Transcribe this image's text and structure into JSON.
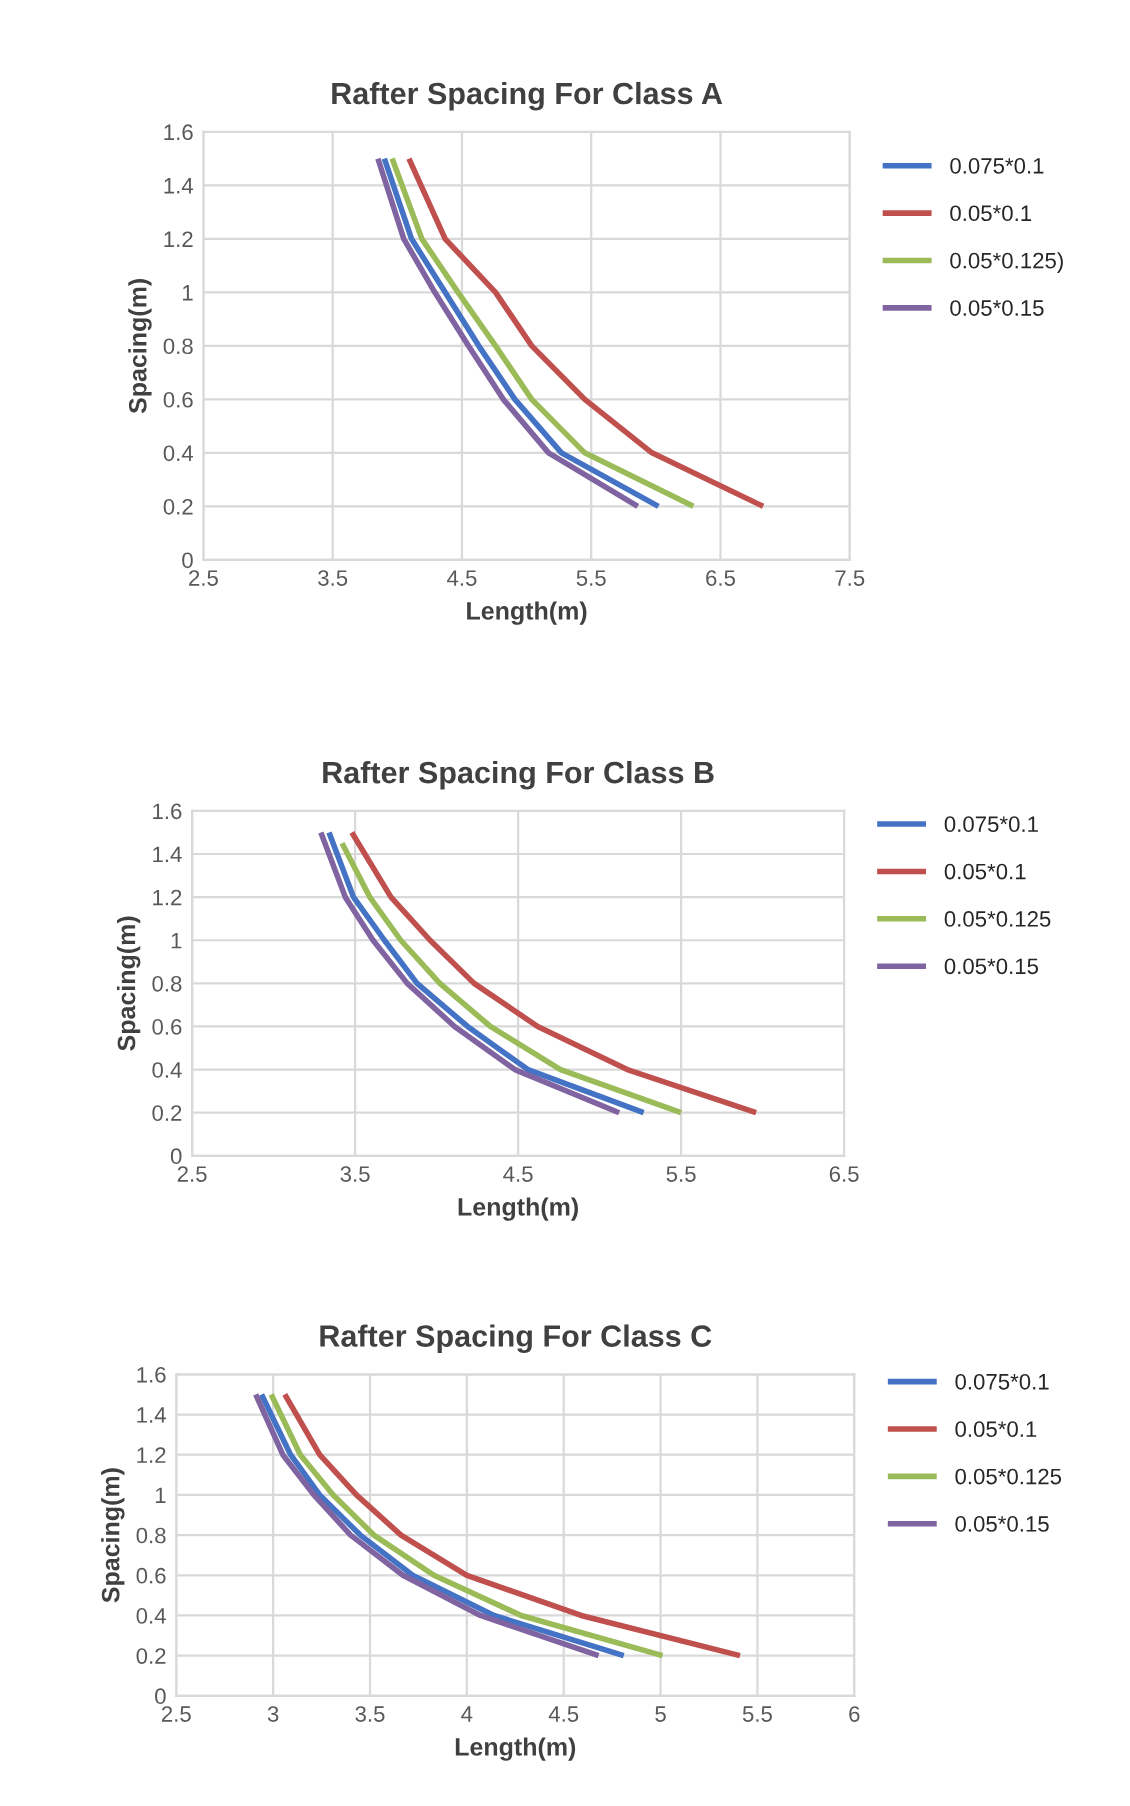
{
  "chart_data": [
    {
      "type": "line",
      "title": "Rafter Spacing For Class A",
      "xlabel": "Length(m)",
      "ylabel": "Spacing(m)",
      "xlim": [
        2.5,
        7.5
      ],
      "xticks": [
        2.5,
        3.5,
        4.5,
        5.5,
        6.5,
        7.5
      ],
      "ylim": [
        0,
        1.6
      ],
      "yticks": [
        0,
        0.2,
        0.4,
        0.6,
        0.8,
        1,
        1.2,
        1.4,
        1.6
      ],
      "grid": true,
      "legend": "right",
      "marker": "none",
      "line_style": "solid",
      "series": [
        {
          "name": "0.075*0.1",
          "color": "#4472c4",
          "x": [
            3.9,
            4.11,
            4.37,
            4.63,
            4.91,
            5.27,
            6.02
          ],
          "values": [
            1.5,
            1.2,
            1.0,
            0.8,
            0.6,
            0.4,
            0.2
          ]
        },
        {
          "name": "0.05*0.1",
          "color": "#c0504d",
          "x": [
            4.09,
            4.37,
            4.76,
            5.04,
            5.45,
            5.97,
            6.83
          ],
          "values": [
            1.5,
            1.2,
            1.0,
            0.8,
            0.6,
            0.4,
            0.2
          ]
        },
        {
          "name": "0.05*0.125)",
          "color": "#9bbb59",
          "x": [
            3.96,
            4.19,
            4.47,
            4.76,
            5.04,
            5.45,
            6.29
          ],
          "values": [
            1.5,
            1.2,
            1.0,
            0.8,
            0.6,
            0.4,
            0.2
          ]
        },
        {
          "name": "0.05*0.15",
          "color": "#8064a2",
          "x": [
            3.85,
            4.05,
            4.29,
            4.55,
            4.82,
            5.17,
            5.86
          ],
          "values": [
            1.5,
            1.2,
            1.0,
            0.8,
            0.6,
            0.4,
            0.2
          ]
        }
      ]
    },
    {
      "type": "line",
      "title": "Rafter Spacing For Class B",
      "xlabel": "Length(m)",
      "ylabel": "Spacing(m)",
      "xlim": [
        2.5,
        6.5
      ],
      "xticks": [
        2.5,
        3.5,
        4.5,
        5.5,
        6.5
      ],
      "ylim": [
        0,
        1.6
      ],
      "yticks": [
        0,
        0.2,
        0.4,
        0.6,
        0.8,
        1,
        1.2,
        1.4,
        1.6
      ],
      "grid": true,
      "legend": "right",
      "marker": "none",
      "line_style": "solid",
      "series": [
        {
          "name": "0.075*0.1",
          "color": "#4472c4",
          "x": [
            3.34,
            3.49,
            3.68,
            3.88,
            4.19,
            4.56,
            5.27
          ],
          "values": [
            1.5,
            1.2,
            1.0,
            0.8,
            0.6,
            0.4,
            0.2
          ]
        },
        {
          "name": "0.05*0.1",
          "color": "#c0504d",
          "x": [
            3.48,
            3.72,
            3.96,
            4.23,
            4.62,
            5.17,
            5.96
          ],
          "values": [
            1.5,
            1.2,
            1.0,
            0.8,
            0.6,
            0.4,
            0.2
          ]
        },
        {
          "name": "0.05*0.125",
          "color": "#9bbb59",
          "x": [
            3.42,
            3.59,
            3.78,
            4.02,
            4.33,
            4.76,
            5.5
          ],
          "values": [
            1.45,
            1.2,
            1.0,
            0.8,
            0.6,
            0.4,
            0.2
          ]
        },
        {
          "name": "0.05*0.15",
          "color": "#8064a2",
          "x": [
            3.29,
            3.44,
            3.61,
            3.82,
            4.11,
            4.48,
            5.12
          ],
          "values": [
            1.5,
            1.2,
            1.0,
            0.8,
            0.6,
            0.4,
            0.2
          ]
        }
      ]
    },
    {
      "type": "line",
      "title": "Rafter Spacing For Class C",
      "xlabel": "Length(m)",
      "ylabel": "Spacing(m)",
      "xlim": [
        2.5,
        6
      ],
      "xticks": [
        2.5,
        3,
        3.5,
        4,
        4.5,
        5,
        5.5,
        6
      ],
      "ylim": [
        0,
        1.6
      ],
      "yticks": [
        0,
        0.2,
        0.4,
        0.6,
        0.8,
        1,
        1.2,
        1.4,
        1.6
      ],
      "grid": true,
      "legend": "right",
      "marker": "none",
      "line_style": "solid",
      "series": [
        {
          "name": "0.075*0.1",
          "color": "#4472c4",
          "x": [
            2.94,
            3.09,
            3.24,
            3.45,
            3.72,
            4.14,
            4.81
          ],
          "values": [
            1.5,
            1.2,
            1.0,
            0.8,
            0.6,
            0.4,
            0.2
          ]
        },
        {
          "name": "0.05*0.1",
          "color": "#c0504d",
          "x": [
            3.06,
            3.24,
            3.43,
            3.66,
            4.0,
            4.59,
            5.41
          ],
          "values": [
            1.5,
            1.2,
            1.0,
            0.8,
            0.6,
            0.4,
            0.2
          ]
        },
        {
          "name": "0.05*0.125",
          "color": "#9bbb59",
          "x": [
            2.99,
            3.14,
            3.31,
            3.52,
            3.83,
            4.28,
            5.01
          ],
          "values": [
            1.5,
            1.2,
            1.0,
            0.8,
            0.6,
            0.4,
            0.2
          ]
        },
        {
          "name": "0.05*0.15",
          "color": "#8064a2",
          "x": [
            2.91,
            3.05,
            3.21,
            3.4,
            3.67,
            4.07,
            4.68
          ],
          "values": [
            1.5,
            1.2,
            1.0,
            0.8,
            0.6,
            0.4,
            0.2
          ]
        }
      ]
    }
  ]
}
